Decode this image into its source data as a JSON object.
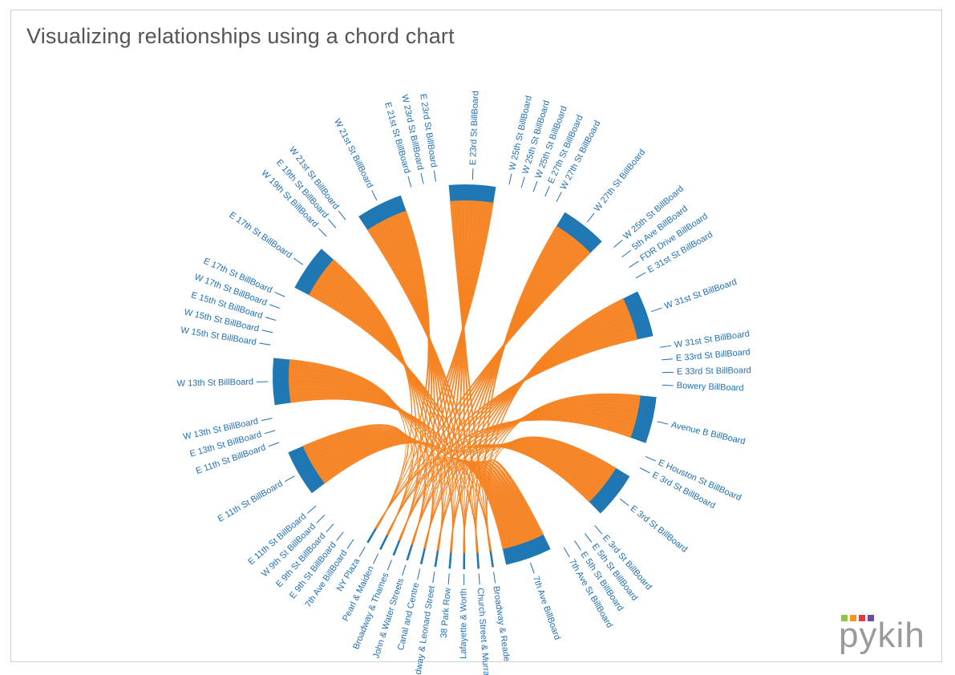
{
  "title": "Visualizing relationships using a chord chart",
  "logo": {
    "text": "pykih",
    "colors": [
      "#8dc63f",
      "#f7941d",
      "#e5393e",
      "#6a4c9c"
    ]
  },
  "colors": {
    "arc": "#1f77b4",
    "ribbon": "#f58220",
    "label": "#1f6fb2",
    "background": "#ffffff"
  },
  "chart_data": {
    "type": "chord",
    "labels": [
      "Broadway & Reade",
      "Church Street & Murray",
      "Lafayette & Worth",
      "38 Park Row",
      "W Broadway & Leonard Street",
      "Canal and Centre",
      "John & Water Streets",
      "Broadway & Thames",
      "Pearl & Maiden",
      "NY Plaza",
      "7th Ave BillBoard",
      "E 9th St BillBoard",
      "E 9th St BillBoard",
      "W 9th St BillBoard",
      "E 11th St BillBoard",
      "E 11th St BillBoard",
      "E 11th St BillBoard",
      "E 13th St BillBoard",
      "W 13th St BillBoard",
      "W 13th St BillBoard",
      "W 15th St BillBoard",
      "W 15th St BillBoard",
      "E 15th St BillBoard",
      "W 17th St BillBoard",
      "E 17th St BillBoard",
      "E 17th St BillBoard",
      "W 19th St BillBoard",
      "E 19th St BillBoard",
      "W 21st St BillBoard",
      "W 21st St BillBoard",
      "E 21st St BillBoard",
      "W 23rd St BillBoard",
      "E 23rd St BillBoard",
      "E 23rd St BillBoard",
      "W 25th St BillBoard",
      "W 25th St BillBoard",
      "W 25th St BillBoard",
      "E 27th St BillBoard",
      "W 27th St BillBoard",
      "W 27th St BillBoard",
      "W 25th St BillBoard",
      "5th Ave BillBoard",
      "FDR Drive BillBoard",
      "E 31st St BillBoard",
      "W 31st St BillBoard",
      "W 31st St BillBoard",
      "E 33rd St BillBoard",
      "E 33rd St BillBoard",
      "Bowery BillBoard",
      "Avenue B BillBoard",
      "E Houston St BillBoard",
      "E 3rd St BillBoard",
      "E 3rd St BillBoard",
      "E 3rd St BillBoard",
      "E 5th St BillBoard",
      "E 5th St BillBoard",
      "7th Ave St BillBoard",
      "7th Ave BillBoard"
    ],
    "groups": [
      {
        "label_index": 0,
        "value": 0.5
      },
      {
        "label_index": 1,
        "value": 0.5
      },
      {
        "label_index": 2,
        "value": 0.5
      },
      {
        "label_index": 3,
        "value": 0.5
      },
      {
        "label_index": 4,
        "value": 0.5
      },
      {
        "label_index": 5,
        "value": 0.5
      },
      {
        "label_index": 6,
        "value": 0.5
      },
      {
        "label_index": 7,
        "value": 0.5
      },
      {
        "label_index": 8,
        "value": 0.5
      },
      {
        "label_index": 9,
        "value": 0.5
      },
      {
        "label_index": 10,
        "value": 0
      },
      {
        "label_index": 11,
        "value": 0
      },
      {
        "label_index": 12,
        "value": 0
      },
      {
        "label_index": 13,
        "value": 0
      },
      {
        "label_index": 14,
        "value": 0
      },
      {
        "label_index": 15,
        "value": 11
      },
      {
        "label_index": 16,
        "value": 0
      },
      {
        "label_index": 17,
        "value": 0
      },
      {
        "label_index": 18,
        "value": 0
      },
      {
        "label_index": 19,
        "value": 11
      },
      {
        "label_index": 20,
        "value": 0
      },
      {
        "label_index": 21,
        "value": 0
      },
      {
        "label_index": 22,
        "value": 0
      },
      {
        "label_index": 23,
        "value": 0
      },
      {
        "label_index": 24,
        "value": 0
      },
      {
        "label_index": 25,
        "value": 11
      },
      {
        "label_index": 26,
        "value": 0
      },
      {
        "label_index": 27,
        "value": 0
      },
      {
        "label_index": 28,
        "value": 0
      },
      {
        "label_index": 29,
        "value": 11
      },
      {
        "label_index": 30,
        "value": 0
      },
      {
        "label_index": 31,
        "value": 0
      },
      {
        "label_index": 32,
        "value": 0
      },
      {
        "label_index": 33,
        "value": 11
      },
      {
        "label_index": 34,
        "value": 0
      },
      {
        "label_index": 35,
        "value": 0
      },
      {
        "label_index": 36,
        "value": 0
      },
      {
        "label_index": 37,
        "value": 0
      },
      {
        "label_index": 38,
        "value": 0
      },
      {
        "label_index": 39,
        "value": 11
      },
      {
        "label_index": 40,
        "value": 0
      },
      {
        "label_index": 41,
        "value": 0
      },
      {
        "label_index": 42,
        "value": 0
      },
      {
        "label_index": 43,
        "value": 0
      },
      {
        "label_index": 44,
        "value": 11
      },
      {
        "label_index": 45,
        "value": 0
      },
      {
        "label_index": 46,
        "value": 0
      },
      {
        "label_index": 47,
        "value": 0
      },
      {
        "label_index": 48,
        "value": 0
      },
      {
        "label_index": 49,
        "value": 11
      },
      {
        "label_index": 50,
        "value": 0
      },
      {
        "label_index": 51,
        "value": 0
      },
      {
        "label_index": 52,
        "value": 11
      },
      {
        "label_index": 53,
        "value": 0
      },
      {
        "label_index": 54,
        "value": 0
      },
      {
        "label_index": 55,
        "value": 0
      },
      {
        "label_index": 56,
        "value": 0
      },
      {
        "label_index": 57,
        "value": 11
      }
    ],
    "flows_from": [
      0,
      1,
      2,
      3,
      4,
      5,
      6,
      7,
      8,
      9
    ]
  }
}
